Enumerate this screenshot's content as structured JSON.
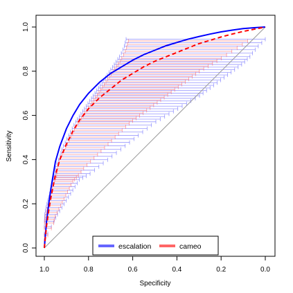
{
  "chart_data": {
    "type": "line",
    "xlabel": "Specificity",
    "ylabel": "Sensitivity",
    "x_reversed": true,
    "xlim": [
      1.0,
      0.0
    ],
    "ylim": [
      0.0,
      1.0
    ],
    "x_ticks": [
      1.0,
      0.8,
      0.6,
      0.4,
      0.2,
      0.0
    ],
    "x_tick_labels": [
      "1.0",
      "0.8",
      "0.6",
      "0.4",
      "0.2",
      "0.0"
    ],
    "y_ticks": [
      0.0,
      0.2,
      0.4,
      0.6,
      0.8,
      1.0
    ],
    "y_tick_labels": [
      "0.0",
      "0.2",
      "0.4",
      "0.6",
      "0.8",
      "1.0"
    ],
    "grid": false,
    "legend_position": "bottom-center",
    "reference_line": {
      "from": [
        1.0,
        0.0
      ],
      "to": [
        0.0,
        1.0
      ],
      "color": "#9a9a9a"
    },
    "series": [
      {
        "name": "escalation",
        "color": "#0000ff",
        "style": "solid",
        "specificity": [
          1.0,
          0.99,
          0.98,
          0.97,
          0.96,
          0.95,
          0.93,
          0.9,
          0.87,
          0.84,
          0.8,
          0.75,
          0.7,
          0.65,
          0.6,
          0.55,
          0.5,
          0.45,
          0.4,
          0.35,
          0.3,
          0.25,
          0.2,
          0.15,
          0.1,
          0.05,
          0.0
        ],
        "sensitivity": [
          0.0,
          0.12,
          0.2,
          0.27,
          0.33,
          0.39,
          0.46,
          0.54,
          0.6,
          0.65,
          0.7,
          0.75,
          0.79,
          0.82,
          0.85,
          0.875,
          0.895,
          0.915,
          0.93,
          0.945,
          0.957,
          0.968,
          0.978,
          0.986,
          0.993,
          0.997,
          1.0
        ],
        "ci_specificity_range": [
          [
            1.0,
            0.0,
            0.0
          ],
          [
            1.0,
            0.04,
            0.08
          ],
          [
            0.998,
            0.06,
            0.12
          ],
          [
            0.99,
            0.085,
            0.16
          ],
          [
            0.98,
            0.11,
            0.2
          ],
          [
            0.97,
            0.135,
            0.24
          ],
          [
            0.96,
            0.16,
            0.28
          ],
          [
            0.95,
            0.2,
            0.3
          ],
          [
            0.95,
            0.25,
            0.34
          ],
          [
            0.93,
            0.3,
            0.38
          ],
          [
            0.92,
            0.35,
            0.42
          ],
          [
            0.9,
            0.4,
            0.46
          ],
          [
            0.88,
            0.45,
            0.5
          ],
          [
            0.86,
            0.5,
            0.54
          ],
          [
            0.84,
            0.55,
            0.57
          ],
          [
            0.82,
            0.6,
            0.6
          ],
          [
            0.8,
            0.65,
            0.63
          ],
          [
            0.78,
            0.7,
            0.66
          ],
          [
            0.76,
            0.74,
            0.69
          ],
          [
            0.74,
            0.78,
            0.72
          ],
          [
            0.72,
            0.82,
            0.75
          ],
          [
            0.7,
            0.86,
            0.78
          ],
          [
            0.68,
            0.9,
            0.81
          ],
          [
            0.66,
            0.93,
            0.84
          ],
          [
            0.64,
            0.96,
            0.88
          ],
          [
            0.63,
            1.0,
            0.92
          ]
        ]
      },
      {
        "name": "cameo",
        "color": "#ff0000",
        "style": "dashed",
        "specificity": [
          1.0,
          0.99,
          0.98,
          0.97,
          0.96,
          0.95,
          0.93,
          0.9,
          0.87,
          0.84,
          0.8,
          0.75,
          0.7,
          0.65,
          0.6,
          0.55,
          0.5,
          0.45,
          0.4,
          0.35,
          0.3,
          0.25,
          0.2,
          0.15,
          0.1,
          0.05,
          0.0
        ],
        "sensitivity": [
          0.0,
          0.1,
          0.17,
          0.23,
          0.28,
          0.33,
          0.4,
          0.47,
          0.53,
          0.58,
          0.63,
          0.68,
          0.72,
          0.76,
          0.79,
          0.82,
          0.845,
          0.865,
          0.885,
          0.905,
          0.925,
          0.94,
          0.955,
          0.968,
          0.98,
          0.99,
          1.0
        ],
        "ci_specificity_range": [
          [
            1.0,
            0.0,
            0.0
          ],
          [
            1.0,
            0.04,
            0.08
          ],
          [
            0.995,
            0.05,
            0.12
          ],
          [
            0.985,
            0.07,
            0.16
          ],
          [
            0.975,
            0.09,
            0.2
          ],
          [
            0.965,
            0.11,
            0.24
          ],
          [
            0.955,
            0.13,
            0.28
          ],
          [
            0.945,
            0.15,
            0.3
          ],
          [
            0.94,
            0.18,
            0.34
          ],
          [
            0.93,
            0.22,
            0.38
          ],
          [
            0.91,
            0.26,
            0.42
          ],
          [
            0.89,
            0.3,
            0.46
          ],
          [
            0.87,
            0.34,
            0.5
          ],
          [
            0.85,
            0.38,
            0.54
          ],
          [
            0.83,
            0.42,
            0.57
          ],
          [
            0.81,
            0.46,
            0.6
          ],
          [
            0.79,
            0.5,
            0.63
          ],
          [
            0.77,
            0.54,
            0.66
          ],
          [
            0.75,
            0.58,
            0.69
          ],
          [
            0.73,
            0.62,
            0.72
          ],
          [
            0.71,
            0.66,
            0.75
          ],
          [
            0.69,
            0.7,
            0.78
          ],
          [
            0.67,
            0.75,
            0.81
          ],
          [
            0.65,
            0.8,
            0.84
          ],
          [
            0.63,
            0.86,
            0.88
          ],
          [
            0.62,
            0.92,
            0.92
          ]
        ]
      }
    ],
    "legend": [
      {
        "label": "escalation",
        "color": "#6666ff"
      },
      {
        "label": "cameo",
        "color": "#ff6666"
      }
    ]
  }
}
